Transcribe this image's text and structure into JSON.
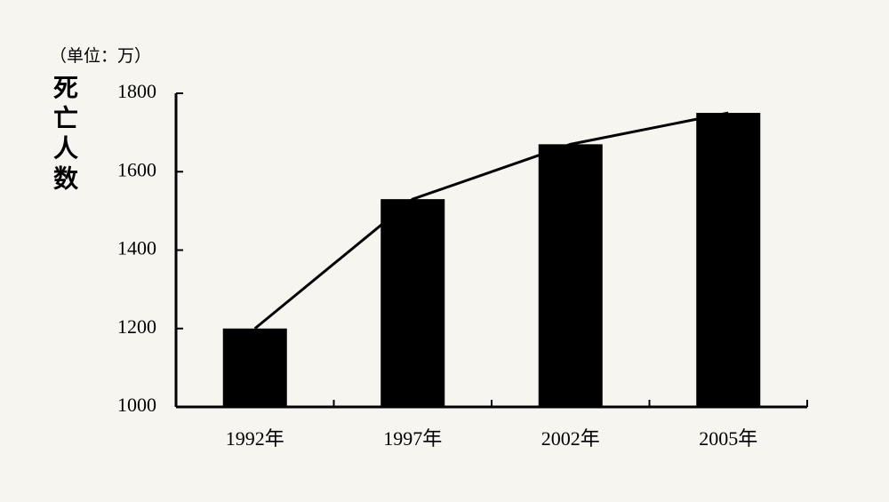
{
  "chart_data": {
    "type": "bar",
    "line_overlay": true,
    "y_label": "死亡人数",
    "unit_note": "（单位：万）",
    "categories": [
      "1992年",
      "1997年",
      "2002年",
      "2005年"
    ],
    "values": [
      1200,
      1530,
      1670,
      1750
    ],
    "color": "#000000",
    "ylim": [
      1000,
      1800
    ],
    "yticks": [
      1000,
      1200,
      1400,
      1600,
      1800
    ],
    "grid": false
  }
}
